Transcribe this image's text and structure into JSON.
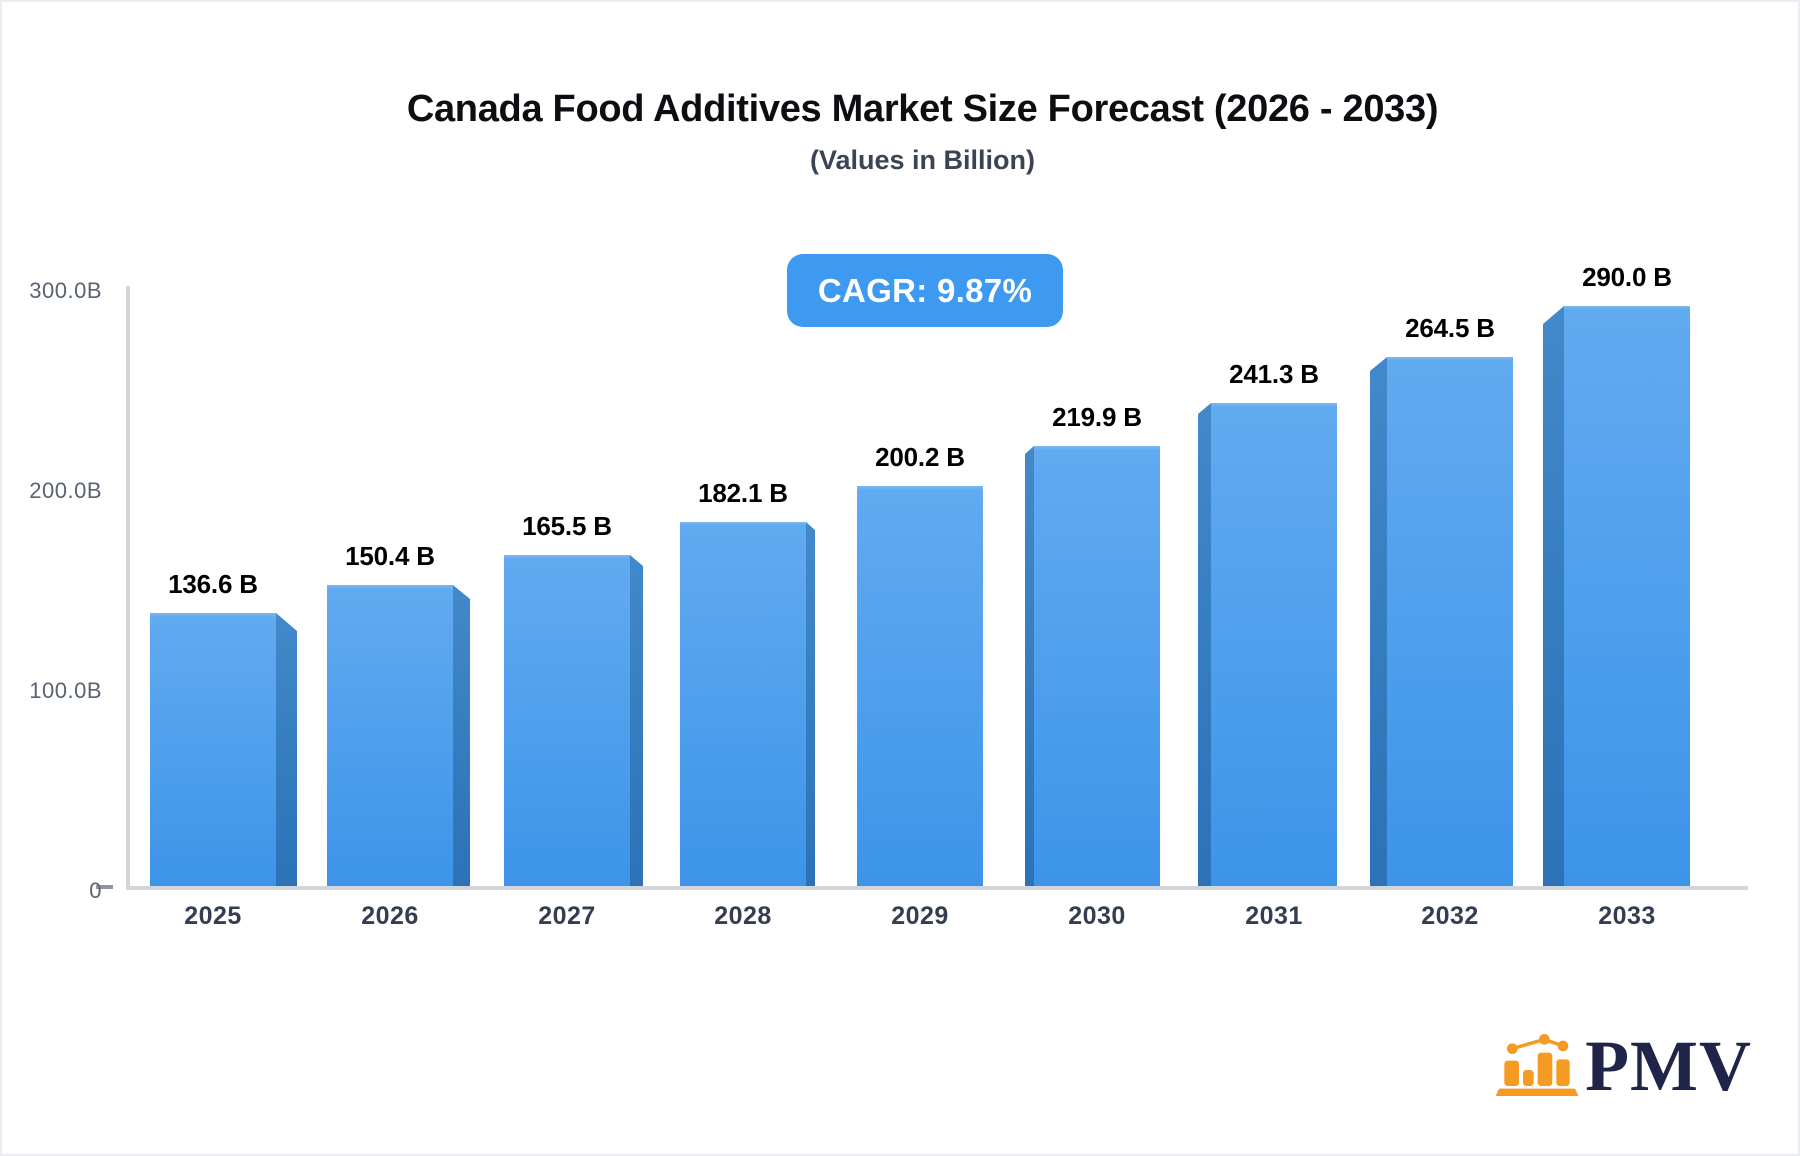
{
  "title": "Canada Food Additives Market Size Forecast (2026 - 2033)",
  "subtitle": "(Values in Billion)",
  "badge": {
    "label": "CAGR: 9.87%"
  },
  "brand": {
    "name": "PMV",
    "icon": "bar-chart-logo-icon"
  },
  "colors": {
    "badge_bg": "#3e9af0",
    "bar_face_top": "#61aaf0",
    "bar_face_bottom": "#3d94e9",
    "bar_side_top": "#4289cb",
    "bar_side_bottom": "#2b72b6",
    "axis": "#d2d6db",
    "value_label": "#000000",
    "tick_label": "#5a6370",
    "year_label": "#343e52",
    "logo_orange": "#f59a23",
    "logo_navy": "#1f2549"
  },
  "chart_data": {
    "type": "bar",
    "style": "3d-perspective-columns",
    "title": "Canada Food Additives Market Size Forecast (2026 - 2033)",
    "subtitle": "(Values in Billion)",
    "xlabel": "",
    "ylabel": "",
    "unit": "Billion",
    "categories": [
      "2025",
      "2026",
      "2027",
      "2028",
      "2029",
      "2030",
      "2031",
      "2032",
      "2033"
    ],
    "values": [
      136.6,
      150.4,
      165.5,
      182.1,
      200.2,
      219.9,
      241.3,
      264.5,
      290.0
    ],
    "value_labels": [
      "136.6 B",
      "150.4 B",
      "165.5 B",
      "182.1 B",
      "200.2 B",
      "219.9 B",
      "241.3 B",
      "264.5 B",
      "290.0 B"
    ],
    "ylim": [
      0,
      300
    ],
    "yticks": [
      {
        "value": 0,
        "label": "0"
      },
      {
        "value": 100,
        "label": "100.0B"
      },
      {
        "value": 200,
        "label": "200.0B"
      },
      {
        "value": 300,
        "label": "300.0B"
      }
    ],
    "grid": false,
    "legend": false,
    "annotations": [
      {
        "text": "CAGR: 9.87%",
        "position": "top-center"
      }
    ]
  }
}
